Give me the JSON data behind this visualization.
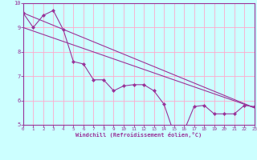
{
  "xlabel": "Windchill (Refroidissement éolien,°C)",
  "xlim": [
    0,
    23
  ],
  "ylim": [
    5,
    10
  ],
  "yticks": [
    5,
    6,
    7,
    8,
    9,
    10
  ],
  "xticks": [
    0,
    1,
    2,
    3,
    4,
    5,
    6,
    7,
    8,
    9,
    10,
    11,
    12,
    13,
    14,
    15,
    16,
    17,
    18,
    19,
    20,
    21,
    22,
    23
  ],
  "line_color": "#993399",
  "bg_color": "#ccffff",
  "grid_color": "#ffaacc",
  "line1_x": [
    0,
    23
  ],
  "line1_y": [
    9.6,
    5.7
  ],
  "line2_x": [
    0,
    23
  ],
  "line2_y": [
    9.0,
    5.7
  ],
  "jagged_x": [
    0,
    1,
    2,
    3,
    4,
    5,
    6,
    7,
    8,
    9,
    10,
    11,
    12,
    13,
    14,
    15,
    16,
    17,
    18,
    19,
    20,
    21,
    22,
    23
  ],
  "jagged_y": [
    9.6,
    9.0,
    9.5,
    9.7,
    8.9,
    7.6,
    7.5,
    6.85,
    6.85,
    6.4,
    6.6,
    6.65,
    6.65,
    6.4,
    5.85,
    4.65,
    4.75,
    5.75,
    5.8,
    5.45,
    5.45,
    5.45,
    5.8,
    5.75
  ]
}
